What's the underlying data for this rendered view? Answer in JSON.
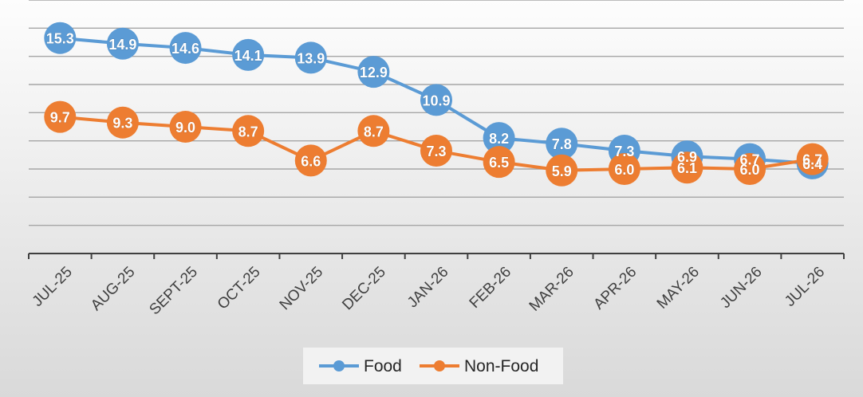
{
  "chart_data": {
    "type": "line",
    "categories": [
      "JUL-25",
      "AUG-25",
      "SEPT-25",
      "OCT-25",
      "NOV-25",
      "DEC-25",
      "JAN-26",
      "FEB-26",
      "MAR-26",
      "APR-26",
      "MAY-26",
      "JUN-26",
      "JUL-26"
    ],
    "series": [
      {
        "name": "Food",
        "values": [
          15.3,
          14.9,
          14.6,
          14.1,
          13.9,
          12.9,
          10.9,
          8.2,
          7.8,
          7.3,
          6.9,
          6.7,
          6.4
        ],
        "labels": [
          "15.3",
          "14.9",
          "14.6",
          "14.1",
          "13.9",
          "12.9",
          "10.9",
          "8.2",
          "7.8",
          "7.3",
          "6.9",
          "6.7",
          "6.4"
        ],
        "color": "#5B9BD5"
      },
      {
        "name": "Non-Food",
        "values": [
          9.7,
          9.3,
          9.0,
          8.7,
          6.6,
          8.7,
          7.3,
          6.5,
          5.9,
          6.0,
          6.1,
          6.0,
          6.7
        ],
        "labels": [
          "9.7",
          "9.3",
          "9.0",
          "8.7",
          "6.6",
          "8.7",
          "7.3",
          "6.5",
          "5.9",
          "6.0",
          "6.1",
          "6.0",
          "6.7"
        ],
        "color": "#ED7D31"
      }
    ],
    "ylim": [
      0,
      18
    ],
    "grid": true,
    "legend": "bottom-center",
    "title": "",
    "xlabel": "",
    "ylabel": "",
    "background_gradient": [
      "#fdfdfd",
      "#d9d9d9"
    ]
  }
}
